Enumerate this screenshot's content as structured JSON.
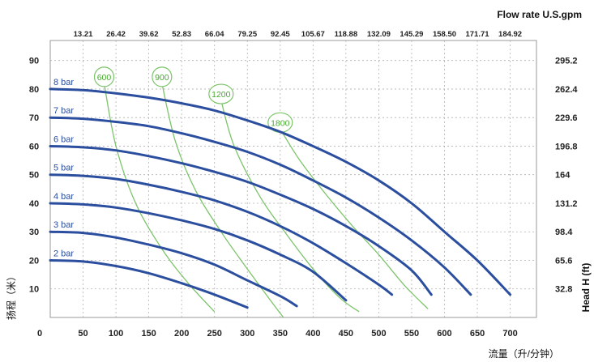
{
  "chart_data": {
    "type": "line",
    "xlabel": "流量（升/分钟）",
    "ylabel": "扬程（米）",
    "y2label": "Head H (ft)",
    "x2label": "Flow rate U.S.gpm",
    "xlim": [
      0,
      740
    ],
    "ylim": [
      0,
      97
    ],
    "x_ticks": [
      "0",
      "50",
      "100",
      "150",
      "200",
      "250",
      "300",
      "350",
      "400",
      "450",
      "500",
      "550",
      "600",
      "650",
      "700"
    ],
    "y_ticks": [
      "10",
      "20",
      "30",
      "40",
      "50",
      "60",
      "70",
      "80",
      "90"
    ],
    "y2_ticks": [
      "32.8",
      "65.6",
      "98.4",
      "131.2",
      "164",
      "196.8",
      "229.6",
      "262.4",
      "295.2"
    ],
    "x2_ticks": [
      "13.21",
      "26.42",
      "39.62",
      "52.83",
      "66.04",
      "79.25",
      "92.45",
      "105.67",
      "118.88",
      "132.09",
      "145.29",
      "158.50",
      "171.71",
      "184.92"
    ],
    "colors": {
      "pressure_curves": "#2b4e9e",
      "flow_curves": "#7cc46a",
      "flow_label": "#4aa832",
      "grid": "#b0b0b0"
    },
    "grid": true,
    "series": [
      {
        "name": "2 bar",
        "points": [
          [
            0,
            20
          ],
          [
            50,
            19.6
          ],
          [
            100,
            18
          ],
          [
            150,
            15.5
          ],
          [
            200,
            12
          ],
          [
            250,
            8
          ],
          [
            300,
            3.5
          ]
        ]
      },
      {
        "name": "3 bar",
        "points": [
          [
            0,
            30
          ],
          [
            50,
            29.6
          ],
          [
            100,
            28
          ],
          [
            150,
            25.5
          ],
          [
            200,
            22.5
          ],
          [
            250,
            18.5
          ],
          [
            300,
            13
          ],
          [
            350,
            7.5
          ],
          [
            375,
            4
          ]
        ]
      },
      {
        "name": "4 bar",
        "points": [
          [
            0,
            40
          ],
          [
            50,
            39.6
          ],
          [
            100,
            38.5
          ],
          [
            150,
            36.5
          ],
          [
            200,
            34
          ],
          [
            250,
            31
          ],
          [
            300,
            27
          ],
          [
            350,
            22
          ],
          [
            400,
            16
          ],
          [
            450,
            6
          ]
        ]
      },
      {
        "name": "5 bar",
        "points": [
          [
            0,
            50
          ],
          [
            50,
            49.6
          ],
          [
            100,
            48.5
          ],
          [
            150,
            46.5
          ],
          [
            200,
            44
          ],
          [
            250,
            41
          ],
          [
            300,
            37
          ],
          [
            350,
            32
          ],
          [
            400,
            26
          ],
          [
            450,
            19
          ],
          [
            500,
            11.5
          ],
          [
            520,
            8
          ]
        ]
      },
      {
        "name": "6 bar",
        "points": [
          [
            0,
            60
          ],
          [
            50,
            59.6
          ],
          [
            100,
            58.5
          ],
          [
            150,
            56.5
          ],
          [
            200,
            54
          ],
          [
            250,
            51
          ],
          [
            300,
            47.5
          ],
          [
            350,
            43
          ],
          [
            400,
            38
          ],
          [
            450,
            32
          ],
          [
            500,
            25
          ],
          [
            550,
            16.5
          ],
          [
            580,
            8
          ]
        ]
      },
      {
        "name": "7 bar",
        "points": [
          [
            0,
            70
          ],
          [
            50,
            69.6
          ],
          [
            100,
            68.5
          ],
          [
            150,
            67
          ],
          [
            200,
            64.5
          ],
          [
            250,
            61.5
          ],
          [
            300,
            58
          ],
          [
            350,
            53.5
          ],
          [
            400,
            48
          ],
          [
            450,
            42
          ],
          [
            500,
            35
          ],
          [
            550,
            27
          ],
          [
            600,
            17.5
          ],
          [
            640,
            8
          ]
        ]
      },
      {
        "name": "8 bar",
        "points": [
          [
            0,
            80
          ],
          [
            50,
            79.6
          ],
          [
            100,
            78.5
          ],
          [
            150,
            77
          ],
          [
            200,
            75
          ],
          [
            250,
            72.5
          ],
          [
            300,
            69
          ],
          [
            350,
            65
          ],
          [
            400,
            60
          ],
          [
            450,
            54.5
          ],
          [
            500,
            48
          ],
          [
            550,
            40
          ],
          [
            600,
            30
          ],
          [
            650,
            20
          ],
          [
            700,
            8
          ]
        ]
      }
    ],
    "flow_curves": [
      {
        "label": "600",
        "points": [
          [
            82,
            82
          ],
          [
            100,
            60
          ],
          [
            130,
            40
          ],
          [
            170,
            24
          ],
          [
            210,
            12
          ],
          [
            250,
            2
          ]
        ]
      },
      {
        "label": "900",
        "points": [
          [
            170,
            82
          ],
          [
            190,
            62
          ],
          [
            220,
            45
          ],
          [
            260,
            30
          ],
          [
            300,
            17
          ],
          [
            335,
            6
          ],
          [
            355,
            0
          ]
        ]
      },
      {
        "label": "1200",
        "points": [
          [
            260,
            76
          ],
          [
            280,
            60
          ],
          [
            320,
            42
          ],
          [
            360,
            29
          ],
          [
            400,
            17
          ],
          [
            440,
            7
          ],
          [
            470,
            2
          ]
        ]
      },
      {
        "label": "1800",
        "points": [
          [
            350,
            66
          ],
          [
            380,
            55
          ],
          [
            420,
            43
          ],
          [
            460,
            32
          ],
          [
            500,
            22
          ],
          [
            540,
            11
          ],
          [
            575,
            3
          ]
        ]
      }
    ]
  }
}
